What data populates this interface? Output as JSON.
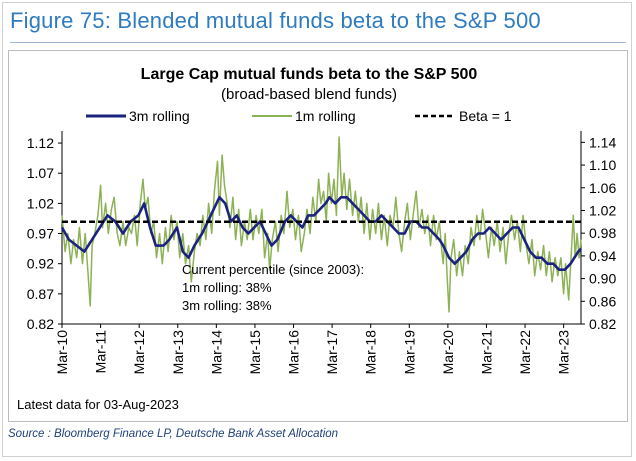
{
  "figure": {
    "title": "Figure 75: Blended mutual funds beta to the S&P 500",
    "source": "Source : Bloomberg Finance LP, Deutsche Bank Asset Allocation",
    "latest_note": "Latest data for 03-Aug-2023"
  },
  "chart_data": {
    "type": "line",
    "title": "Large Cap mutual funds beta to the S&P 500",
    "subtitle": "(broad-based blend funds)",
    "xlabel": "",
    "ylabel": "",
    "x_range": [
      2010.17,
      2023.62
    ],
    "categories": [
      "Mar-10",
      "Mar-11",
      "Mar-12",
      "Mar-13",
      "Mar-14",
      "Mar-15",
      "Mar-16",
      "Mar-17",
      "Mar-18",
      "Mar-19",
      "Mar-20",
      "Mar-21",
      "Mar-22",
      "Mar-23"
    ],
    "category_positions": [
      2010.17,
      2011.17,
      2012.17,
      2013.17,
      2014.17,
      2015.17,
      2016.17,
      2017.17,
      2018.17,
      2019.17,
      2020.17,
      2021.17,
      2022.17,
      2023.17
    ],
    "y_left": {
      "min": 0.82,
      "max": 1.14,
      "ticks": [
        0.82,
        0.87,
        0.92,
        0.97,
        1.02,
        1.07,
        1.12
      ],
      "tick_labels": [
        "0.82",
        "0.87",
        "0.92",
        "0.97",
        "1.02",
        "1.07",
        "1.12"
      ]
    },
    "y_right": {
      "min": 0.82,
      "max": 1.16,
      "ticks": [
        0.82,
        0.86,
        0.9,
        0.94,
        0.98,
        1.02,
        1.06,
        1.1,
        1.14
      ],
      "tick_labels": [
        "0.82",
        "0.86",
        "0.90",
        "0.94",
        "0.98",
        "1.02",
        "1.06",
        "1.10",
        "1.14"
      ]
    },
    "series": [
      {
        "name": "3m rolling",
        "axis": "left",
        "color": "#1a237e",
        "style": "solid",
        "points": [
          [
            2010.17,
            0.98
          ],
          [
            2010.35,
            0.96
          ],
          [
            2010.55,
            0.95
          ],
          [
            2010.75,
            0.94
          ],
          [
            2010.95,
            0.96
          ],
          [
            2011.15,
            0.98
          ],
          [
            2011.35,
            1.0
          ],
          [
            2011.55,
            0.99
          ],
          [
            2011.75,
            0.97
          ],
          [
            2011.95,
            0.99
          ],
          [
            2012.15,
            1.0
          ],
          [
            2012.3,
            1.02
          ],
          [
            2012.45,
            0.98
          ],
          [
            2012.6,
            0.95
          ],
          [
            2012.8,
            0.95
          ],
          [
            2012.95,
            0.96
          ],
          [
            2013.15,
            0.98
          ],
          [
            2013.3,
            0.94
          ],
          [
            2013.45,
            0.93
          ],
          [
            2013.6,
            0.95
          ],
          [
            2013.8,
            0.97
          ],
          [
            2013.95,
            0.99
          ],
          [
            2014.1,
            1.01
          ],
          [
            2014.25,
            1.03
          ],
          [
            2014.4,
            1.02
          ],
          [
            2014.55,
            0.99
          ],
          [
            2014.7,
            1.0
          ],
          [
            2014.85,
            0.98
          ],
          [
            2015.0,
            0.97
          ],
          [
            2015.15,
            0.98
          ],
          [
            2015.3,
            0.99
          ],
          [
            2015.45,
            0.97
          ],
          [
            2015.6,
            0.95
          ],
          [
            2015.75,
            0.96
          ],
          [
            2015.95,
            0.99
          ],
          [
            2016.1,
            1.0
          ],
          [
            2016.25,
            0.99
          ],
          [
            2016.4,
            0.98
          ],
          [
            2016.55,
            1.0
          ],
          [
            2016.7,
            1.0
          ],
          [
            2016.85,
            1.01
          ],
          [
            2017.0,
            1.02
          ],
          [
            2017.1,
            1.03
          ],
          [
            2017.25,
            1.02
          ],
          [
            2017.4,
            1.03
          ],
          [
            2017.55,
            1.03
          ],
          [
            2017.7,
            1.02
          ],
          [
            2017.85,
            1.01
          ],
          [
            2018.0,
            1.0
          ],
          [
            2018.15,
            0.99
          ],
          [
            2018.3,
            0.99
          ],
          [
            2018.45,
            1.0
          ],
          [
            2018.6,
            0.99
          ],
          [
            2018.75,
            0.98
          ],
          [
            2018.9,
            0.97
          ],
          [
            2019.05,
            0.97
          ],
          [
            2019.2,
            0.99
          ],
          [
            2019.35,
            0.99
          ],
          [
            2019.5,
            0.98
          ],
          [
            2019.65,
            0.98
          ],
          [
            2019.8,
            0.97
          ],
          [
            2019.95,
            0.96
          ],
          [
            2020.05,
            0.95
          ],
          [
            2020.2,
            0.93
          ],
          [
            2020.35,
            0.92
          ],
          [
            2020.5,
            0.93
          ],
          [
            2020.65,
            0.94
          ],
          [
            2020.8,
            0.96
          ],
          [
            2020.95,
            0.97
          ],
          [
            2021.1,
            0.97
          ],
          [
            2021.25,
            0.98
          ],
          [
            2021.4,
            0.97
          ],
          [
            2021.55,
            0.96
          ],
          [
            2021.7,
            0.97
          ],
          [
            2021.85,
            0.98
          ],
          [
            2022.0,
            0.98
          ],
          [
            2022.15,
            0.96
          ],
          [
            2022.3,
            0.94
          ],
          [
            2022.45,
            0.93
          ],
          [
            2022.6,
            0.93
          ],
          [
            2022.75,
            0.92
          ],
          [
            2022.9,
            0.92
          ],
          [
            2023.05,
            0.91
          ],
          [
            2023.2,
            0.91
          ],
          [
            2023.35,
            0.92
          ],
          [
            2023.45,
            0.93
          ],
          [
            2023.55,
            0.94
          ],
          [
            2023.62,
            0.945
          ]
        ]
      },
      {
        "name": "1m rolling",
        "axis": "left",
        "color": "#8db255",
        "style": "solid",
        "points": [
          [
            2010.17,
            1.0
          ],
          [
            2010.25,
            0.94
          ],
          [
            2010.32,
            0.97
          ],
          [
            2010.4,
            0.92
          ],
          [
            2010.47,
            0.96
          ],
          [
            2010.55,
            0.93
          ],
          [
            2010.62,
            0.98
          ],
          [
            2010.7,
            0.92
          ],
          [
            2010.77,
            0.97
          ],
          [
            2010.85,
            0.9
          ],
          [
            2010.9,
            0.85
          ],
          [
            2010.95,
            0.95
          ],
          [
            2011.02,
            0.97
          ],
          [
            2011.1,
            1.0
          ],
          [
            2011.17,
            1.05
          ],
          [
            2011.22,
            0.98
          ],
          [
            2011.3,
            1.02
          ],
          [
            2011.37,
            0.97
          ],
          [
            2011.45,
            1.01
          ],
          [
            2011.52,
            1.03
          ],
          [
            2011.6,
            0.97
          ],
          [
            2011.67,
            0.95
          ],
          [
            2011.75,
            0.99
          ],
          [
            2011.82,
            0.95
          ],
          [
            2011.9,
            0.98
          ],
          [
            2011.97,
            0.97
          ],
          [
            2012.05,
            1.0
          ],
          [
            2012.12,
            0.95
          ],
          [
            2012.2,
            1.02
          ],
          [
            2012.27,
            1.06
          ],
          [
            2012.33,
            1.01
          ],
          [
            2012.4,
            1.03
          ],
          [
            2012.47,
            0.97
          ],
          [
            2012.55,
            0.99
          ],
          [
            2012.62,
            0.93
          ],
          [
            2012.7,
            0.97
          ],
          [
            2012.77,
            0.92
          ],
          [
            2012.85,
            0.98
          ],
          [
            2012.92,
            0.94
          ],
          [
            2013.0,
            1.0
          ],
          [
            2013.07,
            0.96
          ],
          [
            2013.15,
            0.99
          ],
          [
            2013.22,
            0.93
          ],
          [
            2013.3,
            0.97
          ],
          [
            2013.37,
            0.92
          ],
          [
            2013.45,
            0.95
          ],
          [
            2013.52,
            0.89
          ],
          [
            2013.6,
            0.94
          ],
          [
            2013.67,
            0.97
          ],
          [
            2013.75,
            0.95
          ],
          [
            2013.82,
            1.0
          ],
          [
            2013.9,
            0.96
          ],
          [
            2013.97,
            1.02
          ],
          [
            2014.05,
            0.97
          ],
          [
            2014.12,
            1.04
          ],
          [
            2014.2,
            1.09
          ],
          [
            2014.25,
            1.0
          ],
          [
            2014.32,
            1.1
          ],
          [
            2014.38,
            1.05
          ],
          [
            2014.45,
            1.02
          ],
          [
            2014.52,
            0.98
          ],
          [
            2014.6,
            1.03
          ],
          [
            2014.67,
            0.96
          ],
          [
            2014.75,
            1.01
          ],
          [
            2014.82,
            0.95
          ],
          [
            2014.9,
            0.99
          ],
          [
            2014.97,
            0.96
          ],
          [
            2015.05,
            1.01
          ],
          [
            2015.12,
            0.96
          ],
          [
            2015.2,
            1.0
          ],
          [
            2015.27,
            0.97
          ],
          [
            2015.35,
            1.01
          ],
          [
            2015.42,
            0.93
          ],
          [
            2015.5,
            0.97
          ],
          [
            2015.55,
            0.91
          ],
          [
            2015.62,
            0.96
          ],
          [
            2015.7,
            0.99
          ],
          [
            2015.77,
            0.94
          ],
          [
            2015.85,
            1.0
          ],
          [
            2015.92,
            0.97
          ],
          [
            2016.0,
            1.04
          ],
          [
            2016.07,
            0.98
          ],
          [
            2016.15,
            1.01
          ],
          [
            2016.22,
            0.96
          ],
          [
            2016.3,
            1.0
          ],
          [
            2016.37,
            0.94
          ],
          [
            2016.45,
            0.97
          ],
          [
            2016.52,
            1.01
          ],
          [
            2016.6,
            0.97
          ],
          [
            2016.67,
            1.03
          ],
          [
            2016.75,
            0.99
          ],
          [
            2016.82,
            1.06
          ],
          [
            2016.88,
            1.02
          ],
          [
            2016.95,
            1.04
          ],
          [
            2017.02,
            0.99
          ],
          [
            2017.08,
            1.07
          ],
          [
            2017.15,
            1.02
          ],
          [
            2017.22,
            1.06
          ],
          [
            2017.28,
            1.0
          ],
          [
            2017.35,
            1.13
          ],
          [
            2017.42,
            1.03
          ],
          [
            2017.48,
            1.07
          ],
          [
            2017.55,
            1.01
          ],
          [
            2017.62,
            1.06
          ],
          [
            2017.7,
            1.0
          ],
          [
            2017.77,
            1.04
          ],
          [
            2017.85,
            0.99
          ],
          [
            2017.92,
            1.03
          ],
          [
            2018.0,
            0.97
          ],
          [
            2018.07,
            1.02
          ],
          [
            2018.15,
            0.96
          ],
          [
            2018.22,
            1.01
          ],
          [
            2018.3,
            0.97
          ],
          [
            2018.37,
            1.02
          ],
          [
            2018.45,
            0.96
          ],
          [
            2018.52,
            1.0
          ],
          [
            2018.6,
            0.95
          ],
          [
            2018.67,
            1.0
          ],
          [
            2018.75,
            0.98
          ],
          [
            2018.82,
            1.03
          ],
          [
            2018.9,
            0.97
          ],
          [
            2018.97,
            0.94
          ],
          [
            2019.05,
            0.99
          ],
          [
            2019.12,
            1.02
          ],
          [
            2019.2,
            0.96
          ],
          [
            2019.27,
            1.0
          ],
          [
            2019.35,
            1.04
          ],
          [
            2019.42,
            0.98
          ],
          [
            2019.5,
            1.01
          ],
          [
            2019.57,
            0.97
          ],
          [
            2019.65,
            1.0
          ],
          [
            2019.72,
            0.95
          ],
          [
            2019.8,
            1.0
          ],
          [
            2019.87,
            0.96
          ],
          [
            2019.95,
            0.99
          ],
          [
            2020.0,
            0.95
          ],
          [
            2020.05,
            0.92
          ],
          [
            2020.1,
            0.97
          ],
          [
            2020.15,
            0.9
          ],
          [
            2020.2,
            0.84
          ],
          [
            2020.25,
            0.93
          ],
          [
            2020.32,
            0.96
          ],
          [
            2020.4,
            0.9
          ],
          [
            2020.47,
            0.94
          ],
          [
            2020.55,
            0.9
          ],
          [
            2020.62,
            0.95
          ],
          [
            2020.7,
            0.92
          ],
          [
            2020.77,
            0.98
          ],
          [
            2020.85,
            0.95
          ],
          [
            2020.92,
            1.0
          ],
          [
            2021.0,
            0.96
          ],
          [
            2021.07,
            1.01
          ],
          [
            2021.15,
            0.97
          ],
          [
            2021.22,
            0.93
          ],
          [
            2021.3,
            0.98
          ],
          [
            2021.37,
            0.95
          ],
          [
            2021.45,
            0.99
          ],
          [
            2021.52,
            0.94
          ],
          [
            2021.6,
            0.98
          ],
          [
            2021.67,
            0.92
          ],
          [
            2021.75,
            0.97
          ],
          [
            2021.82,
            1.0
          ],
          [
            2021.9,
            0.96
          ],
          [
            2021.97,
            0.99
          ],
          [
            2022.05,
            0.94
          ],
          [
            2022.12,
            1.0
          ],
          [
            2022.2,
            0.95
          ],
          [
            2022.27,
            0.92
          ],
          [
            2022.35,
            0.96
          ],
          [
            2022.42,
            0.9
          ],
          [
            2022.5,
            0.94
          ],
          [
            2022.57,
            0.91
          ],
          [
            2022.65,
            0.95
          ],
          [
            2022.72,
            0.9
          ],
          [
            2022.8,
            0.94
          ],
          [
            2022.87,
            0.89
          ],
          [
            2022.95,
            0.93
          ],
          [
            2023.02,
            0.9
          ],
          [
            2023.1,
            0.93
          ],
          [
            2023.17,
            0.87
          ],
          [
            2023.22,
            0.92
          ],
          [
            2023.3,
            0.86
          ],
          [
            2023.37,
            0.94
          ],
          [
            2023.42,
            1.0
          ],
          [
            2023.47,
            0.93
          ],
          [
            2023.52,
            0.97
          ],
          [
            2023.57,
            0.93
          ],
          [
            2023.62,
            0.96
          ]
        ]
      },
      {
        "name": "Beta = 1",
        "axis": "right",
        "color": "#000000",
        "style": "dashed",
        "points": [
          [
            2010.17,
            1.0
          ],
          [
            2023.62,
            1.0
          ]
        ]
      }
    ],
    "annotation": {
      "lines": [
        "Current percentile (since 2003):",
        "1m rolling: 38%",
        "3m rolling: 38%"
      ]
    },
    "legend": {
      "placement": "top",
      "entries": [
        "3m rolling",
        "1m rolling",
        "Beta = 1"
      ]
    }
  }
}
